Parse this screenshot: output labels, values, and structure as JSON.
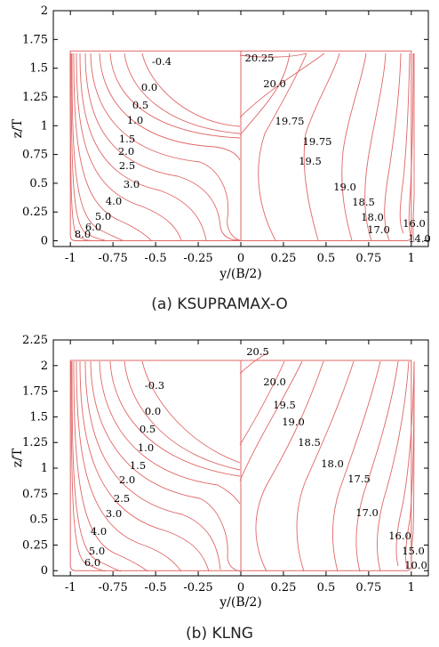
{
  "chart_data": [
    {
      "type": "contour",
      "caption": "(a) KSUPRAMAX-O",
      "xlabel": "y/(B/2)",
      "ylabel": "z/T",
      "xlim": [
        -1.1,
        1.1
      ],
      "ylim": [
        -0.05,
        2.0
      ],
      "xticks": [
        "-1",
        "-0.75",
        "-0.5",
        "-0.25",
        "0",
        "0.25",
        "0.5",
        "0.75",
        "1"
      ],
      "yticks": [
        "0",
        "0.25",
        "0.5",
        "0.75",
        "1",
        "1.25",
        "1.5",
        "1.75",
        "2"
      ],
      "line_color": "#e06666",
      "hull_outline": {
        "half_breadth": 1.0,
        "draft": 1.65
      },
      "left_levels": [
        "-0.4",
        "0.0",
        "0.5",
        "1.0",
        "1.5",
        "2.0",
        "2.5",
        "3.0",
        "4.0",
        "5.0",
        "6.0",
        "8.0"
      ],
      "right_levels": [
        "20.25",
        "20.0",
        "19.75",
        "19.75",
        "19.5",
        "19.0",
        "18.5",
        "18.0",
        "17.0",
        "16.0",
        "14.0"
      ]
    },
    {
      "type": "contour",
      "caption": "(b) KLNG",
      "xlabel": "y/(B/2)",
      "ylabel": "z/T",
      "xlim": [
        -1.1,
        1.1
      ],
      "ylim": [
        -0.05,
        2.25
      ],
      "xticks": [
        "-1",
        "-0.75",
        "-0.5",
        "-0.25",
        "0",
        "0.25",
        "0.5",
        "0.75",
        "1"
      ],
      "yticks": [
        "0",
        "0.25",
        "0.5",
        "0.75",
        "1",
        "1.25",
        "1.5",
        "1.75",
        "2",
        "2.25"
      ],
      "line_color": "#e06666",
      "hull_outline": {
        "half_breadth": 1.0,
        "draft": 2.05
      },
      "left_levels": [
        "-0.3",
        "0.0",
        "0.5",
        "1.0",
        "1.5",
        "2.0",
        "2.5",
        "3.0",
        "4.0",
        "5.0",
        "6.0"
      ],
      "right_levels": [
        "20.5",
        "20.0",
        "19.5",
        "19.0",
        "18.5",
        "18.0",
        "17.5",
        "17.0",
        "16.0",
        "15.0",
        "10.0"
      ]
    }
  ]
}
